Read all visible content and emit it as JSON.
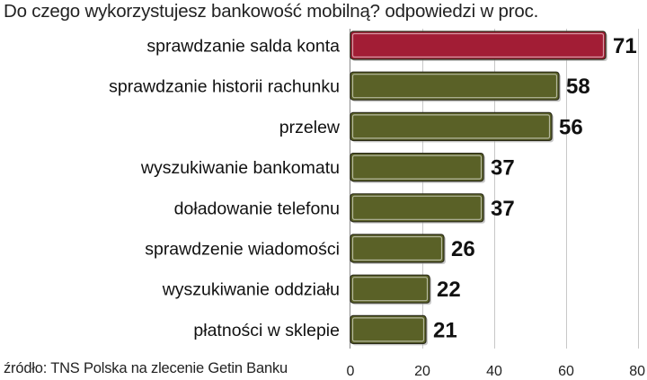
{
  "chart_data": {
    "type": "bar",
    "orientation": "horizontal",
    "title": "Do czego wykorzystujesz bankowość mobilną? odpowiedzi w proc.",
    "source": "źródło: TNS Polska na zlecenie Getin Banku",
    "categories": [
      "sprawdzanie salda konta",
      "sprawdzanie historii rachunku",
      "przelew",
      "wyszukiwanie bankomatu",
      "doładowanie telefonu",
      "sprawdzenie wiadomości",
      "wyszukiwanie oddziału",
      "płatności w sklepie"
    ],
    "values": [
      71,
      58,
      56,
      37,
      37,
      26,
      22,
      21
    ],
    "xlim": [
      0,
      80
    ],
    "xticks": [
      "0",
      "20",
      "40",
      "60",
      "80"
    ],
    "grid": "vertical",
    "colors": {
      "highlight": "#a21d35",
      "bar": "#5a6127",
      "bar_outline": "#2b2b18",
      "grid": "#c8c8c8"
    }
  }
}
